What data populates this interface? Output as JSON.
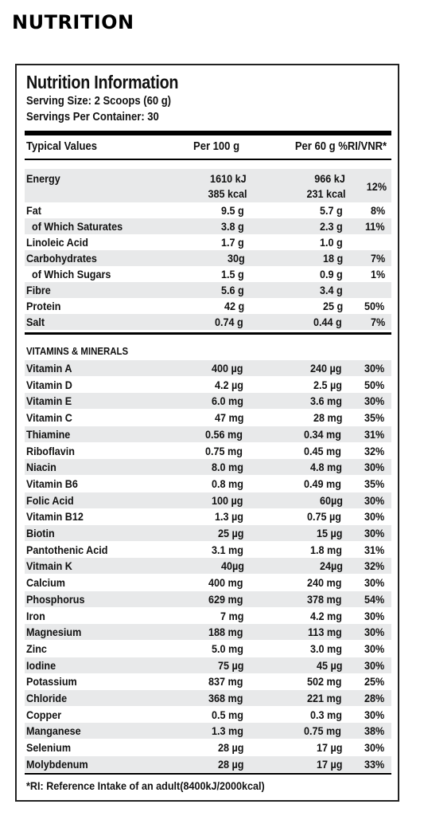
{
  "heading": "NUTRITION",
  "panel": {
    "title": "Nutrition Information",
    "serving_size": "Serving Size: 2 Scoops (60 g)",
    "servings_per_container": "Servings Per Container: 30",
    "columns": {
      "name": "Typical Values",
      "per100": "Per 100 g",
      "per60": "Per 60 g %RI/VNR*"
    },
    "energy": {
      "name": "Energy",
      "per100_kj": "1610 kJ",
      "per100_kcal": "385 kcal",
      "per60_kj": "966 kJ",
      "per60_kcal": "231 kcal",
      "ri": "12%"
    },
    "macros": [
      {
        "name": "Fat",
        "per100": "9.5 g",
        "per60": "5.7 g",
        "ri": "8%"
      },
      {
        "name": "  of Which Saturates",
        "per100": "3.8 g",
        "per60": "2.3 g",
        "ri": "11%"
      },
      {
        "name": "Linoleic Acid",
        "per100": "1.7 g",
        "per60": "1.0 g",
        "ri": ""
      },
      {
        "name": "Carbohydrates",
        "per100": "30g",
        "per60": "18 g",
        "ri": "7%"
      },
      {
        "name": "  of Which Sugars",
        "per100": "1.5 g",
        "per60": "0.9 g",
        "ri": "1%"
      },
      {
        "name": "Fibre",
        "per100": "5.6 g",
        "per60": "3.4 g",
        "ri": ""
      },
      {
        "name": "Protein",
        "per100": "42 g",
        "per60": "25 g",
        "ri": "50%"
      },
      {
        "name": "Salt",
        "per100": "0.74 g",
        "per60": "0.44 g",
        "ri": "7%"
      }
    ],
    "vitamins_title": "VITAMINS & MINERALS",
    "vitamins": [
      {
        "name": "Vitamin A",
        "per100": "400 µg",
        "per60": "240 µg",
        "ri": "30%"
      },
      {
        "name": "Vitamin D",
        "per100": "4.2 µg",
        "per60": "2.5 µg",
        "ri": "50%"
      },
      {
        "name": "Vitamin E",
        "per100": "6.0 mg",
        "per60": "3.6 mg",
        "ri": "30%"
      },
      {
        "name": "Vitamin C",
        "per100": "47 mg",
        "per60": "28 mg",
        "ri": "35%"
      },
      {
        "name": "Thiamine",
        "per100": "0.56 mg",
        "per60": "0.34 mg",
        "ri": "31%"
      },
      {
        "name": "Riboflavin",
        "per100": "0.75 mg",
        "per60": "0.45 mg",
        "ri": "32%"
      },
      {
        "name": "Niacin",
        "per100": "8.0 mg",
        "per60": "4.8 mg",
        "ri": "30%"
      },
      {
        "name": "Vitamin B6",
        "per100": "0.8 mg",
        "per60": "0.49 mg",
        "ri": "35%"
      },
      {
        "name": "Folic Acid",
        "per100": "100 µg",
        "per60": "60µg",
        "ri": "30%"
      },
      {
        "name": "Vitamin B12",
        "per100": "1.3 µg",
        "per60": "0.75 µg",
        "ri": "30%"
      },
      {
        "name": "Biotin",
        "per100": "25 µg",
        "per60": "15 µg",
        "ri": "30%"
      },
      {
        "name": "Pantothenic Acid",
        "per100": "3.1 mg",
        "per60": "1.8 mg",
        "ri": "31%"
      },
      {
        "name": "Vitmain K",
        "per100": "40µg",
        "per60": "24µg",
        "ri": "32%"
      },
      {
        "name": "Calcium",
        "per100": "400 mg",
        "per60": "240 mg",
        "ri": "30%"
      },
      {
        "name": "Phosphorus",
        "per100": "629 mg",
        "per60": "378 mg",
        "ri": "54%"
      },
      {
        "name": "Iron",
        "per100": "7 mg",
        "per60": "4.2 mg",
        "ri": "30%"
      },
      {
        "name": "Magnesium",
        "per100": "188 mg",
        "per60": "113 mg",
        "ri": "30%"
      },
      {
        "name": "Zinc",
        "per100": "5.0 mg",
        "per60": "3.0 mg",
        "ri": "30%"
      },
      {
        "name": "Iodine",
        "per100": "75 µg",
        "per60": "45 µg",
        "ri": "30%"
      },
      {
        "name": "Potassium",
        "per100": "837 mg",
        "per60": "502 mg",
        "ri": "25%"
      },
      {
        "name": "Chloride",
        "per100": "368 mg",
        "per60": "221 mg",
        "ri": "28%"
      },
      {
        "name": "Copper",
        "per100": "0.5 mg",
        "per60": "0.3 mg",
        "ri": "30%"
      },
      {
        "name": "Manganese",
        "per100": "1.3 mg",
        "per60": "0.75 mg",
        "ri": "38%"
      },
      {
        "name": "Selenium",
        "per100": "28 µg",
        "per60": "17 µg",
        "ri": "30%"
      },
      {
        "name": "Molybdenum",
        "per100": "28 µg",
        "per60": "17 µg",
        "ri": "33%"
      }
    ],
    "footnote": "*RI: Reference Intake of an adult(8400kJ/2000kcal)"
  }
}
